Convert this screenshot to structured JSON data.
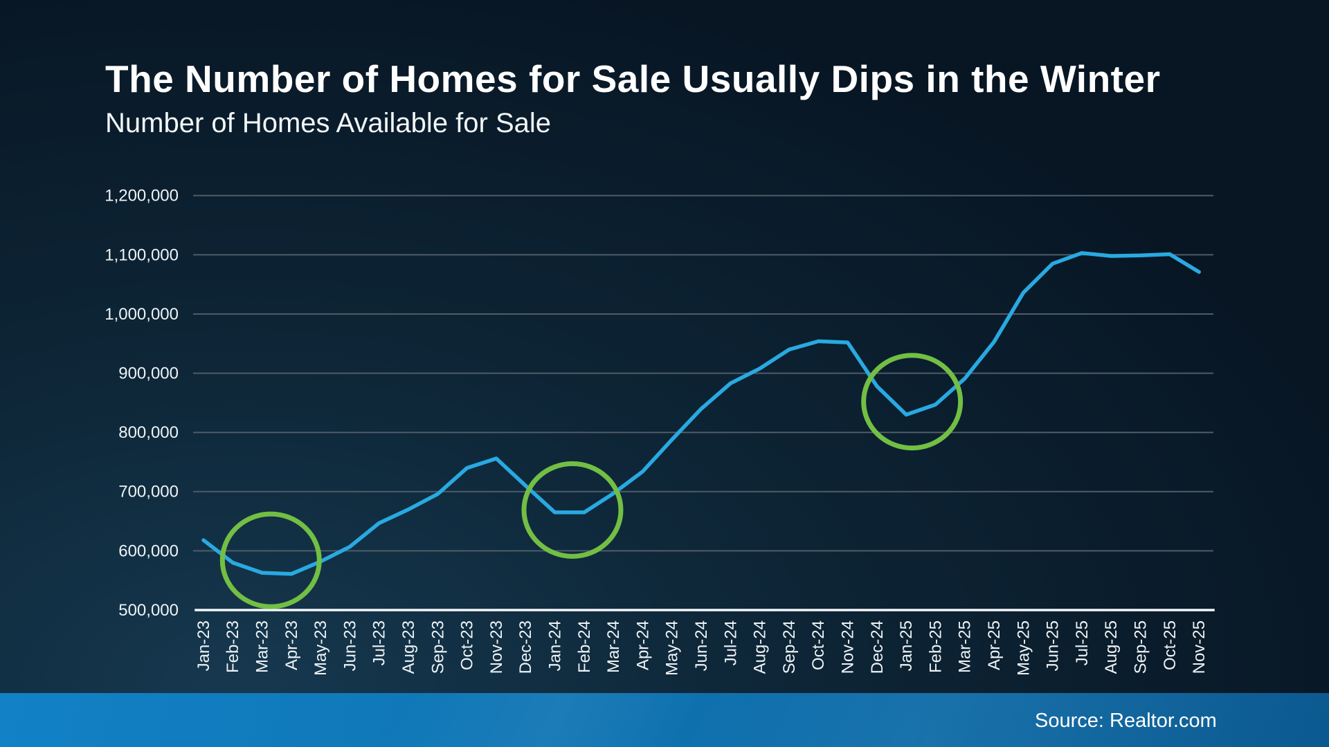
{
  "page": {
    "title": "The Number of Homes for Sale Usually Dips in the Winter",
    "subtitle": "Number of Homes Available for Sale",
    "source": "Source: Realtor.com"
  },
  "colors": {
    "line": "#29A9E1",
    "dip_circle": "#72BF44",
    "gridline": "#4e5c68",
    "axis_baseline": "#f4f7f9",
    "text": "#ffffff",
    "background_dark": "#081624",
    "background_glow": "#16384f",
    "footer_blue_left": "#1281c6",
    "footer_blue_right": "#0b5e98"
  },
  "chart_data": {
    "type": "line",
    "title": "Number of Homes Available for Sale",
    "x": [
      "Jan-23",
      "Feb-23",
      "Mar-23",
      "Apr-23",
      "May-23",
      "Jun-23",
      "Jul-23",
      "Aug-23",
      "Sep-23",
      "Oct-23",
      "Nov-23",
      "Dec-23",
      "Jan-24",
      "Feb-24",
      "Mar-24",
      "Apr-24",
      "May-24",
      "Jun-24",
      "Jul-24",
      "Aug-24",
      "Sep-24",
      "Oct-24",
      "Nov-24",
      "Dec-24",
      "Jan-25",
      "Feb-25",
      "Mar-25",
      "Apr-25",
      "May-25",
      "Jun-25",
      "Jul-25",
      "Aug-25",
      "Sep-25",
      "Oct-25",
      "Nov-25"
    ],
    "series": [
      {
        "name": "Number of Homes Available for Sale",
        "values": [
          618000,
          580000,
          563000,
          561000,
          582000,
          607000,
          647000,
          670000,
          696000,
          740000,
          756000,
          710000,
          665000,
          665000,
          697000,
          734000,
          788000,
          840000,
          883000,
          908000,
          940000,
          954000,
          952000,
          878000,
          830000,
          847000,
          891000,
          953000,
          1036000,
          1085000,
          1103000,
          1098000,
          1099000,
          1101000,
          1071000
        ]
      }
    ],
    "ylim": [
      500000,
      1200000
    ],
    "ytick_step": 100000,
    "ytick_labels": [
      "500,000",
      "600,000",
      "700,000",
      "800,000",
      "900,000",
      "1,000,000",
      "1,100,000",
      "1,200,000"
    ],
    "grid": true,
    "legend": "none",
    "annotations": [
      {
        "type": "ellipse",
        "name": "winter-dip-2023",
        "months": "Feb-23 to Apr-23",
        "center_month_index": 2.3,
        "center_value": 584000
      },
      {
        "type": "ellipse",
        "name": "winter-dip-2024",
        "months": "Dec-23 to Feb-24",
        "center_month_index": 12.6,
        "center_value": 669000
      },
      {
        "type": "ellipse",
        "name": "winter-dip-2025",
        "months": "Dec-24 to Feb-25",
        "center_month_index": 24.2,
        "center_value": 852000
      }
    ]
  }
}
